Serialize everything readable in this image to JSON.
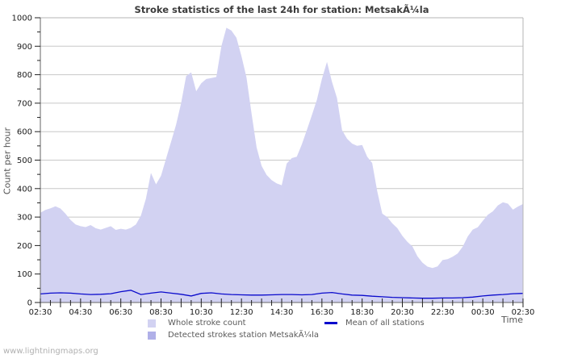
{
  "header": {
    "title": "Stroke statistics of the last 24h for station: MetsakÃ¼la"
  },
  "axes": {
    "y_title": "Count per hour",
    "x_title": "Time"
  },
  "legend": {
    "items": [
      {
        "label": "Whole stroke count",
        "swatch": "area",
        "color": "#d2d2f2"
      },
      {
        "label": "Detected strokes station MetsakÃ¼la",
        "swatch": "area",
        "color": "#b0b0e8"
      },
      {
        "label": "Mean of all stations",
        "swatch": "line",
        "color": "#0a0acc"
      }
    ]
  },
  "footer": {
    "watermark": "www.lightningmaps.org"
  },
  "chart_data": {
    "type": "area",
    "title": "Stroke statistics of the last 24h for station: MetsakÃ¼la",
    "xlabel": "Time",
    "ylabel": "Count per hour",
    "x_start": "02:30",
    "hours_span": 24,
    "x_tick_labels": [
      "02:30",
      "04:30",
      "06:30",
      "08:30",
      "10:30",
      "12:30",
      "14:30",
      "16:30",
      "18:30",
      "20:30",
      "22:30",
      "00:30",
      "02:30"
    ],
    "x_minor_tick_minutes": 30,
    "ylim": [
      0,
      1000
    ],
    "yticks": [
      0,
      100,
      200,
      300,
      400,
      500,
      600,
      700,
      800,
      900,
      1000
    ],
    "y_minor_tick_step": 50,
    "grid": "horizontal",
    "legend_position": "bottom",
    "colors": {
      "grid": "#c8c8c8",
      "axis": "#666666",
      "tick": "#222222",
      "plot_border": "#b4b4b4",
      "tick_text": "#1a1a1a"
    },
    "series": [
      {
        "name": "Whole stroke count",
        "data_name": "whole-stroke-area",
        "type": "area",
        "color": "#d2d2f2",
        "interval_minutes": 15,
        "values": [
          315,
          325,
          331,
          338,
          330,
          312,
          290,
          274,
          268,
          265,
          272,
          261,
          256,
          262,
          268,
          255,
          259,
          256,
          262,
          274,
          305,
          365,
          455,
          415,
          445,
          505,
          565,
          625,
          700,
          795,
          808,
          742,
          770,
          785,
          788,
          792,
          900,
          965,
          955,
          930,
          865,
          790,
          665,
          545,
          480,
          448,
          430,
          418,
          412,
          488,
          507,
          512,
          555,
          605,
          658,
          712,
          785,
          845,
          775,
          718,
          605,
          575,
          558,
          550,
          553,
          512,
          490,
          390,
          312,
          300,
          278,
          261,
          234,
          213,
          197,
          162,
          140,
          126,
          121,
          127,
          149,
          152,
          161,
          172,
          196,
          232,
          256,
          264,
          287,
          308,
          320,
          341,
          352,
          347,
          326,
          337,
          346
        ]
      },
      {
        "name": "Detected strokes station MetsakÃ¼la",
        "data_name": "detected-strokes-area",
        "type": "area",
        "color": "#b0b0e8",
        "interval_minutes": 30,
        "values": [
          0,
          0,
          0,
          0,
          0,
          0,
          0,
          0,
          0,
          0,
          0,
          0,
          0,
          0,
          0,
          0,
          0,
          0,
          0,
          0,
          0,
          0,
          0,
          0,
          0,
          0,
          0,
          0,
          0,
          0,
          0,
          0,
          0,
          0,
          0,
          0,
          0,
          0,
          0,
          0,
          0,
          0,
          0,
          0,
          0,
          0,
          0,
          0,
          0
        ]
      },
      {
        "name": "Mean of all stations",
        "data_name": "mean-line",
        "type": "line",
        "color": "#0a0acc",
        "interval_minutes": 30,
        "values": [
          30,
          33,
          34,
          33,
          30,
          28,
          29,
          31,
          38,
          43,
          28,
          33,
          37,
          33,
          29,
          23,
          32,
          34,
          30,
          28,
          27,
          26,
          26,
          27,
          28,
          28,
          27,
          28,
          33,
          35,
          30,
          26,
          25,
          22,
          20,
          18,
          17,
          16,
          15,
          15,
          16,
          16,
          17,
          19,
          23,
          26,
          28,
          31,
          32
        ]
      }
    ]
  }
}
